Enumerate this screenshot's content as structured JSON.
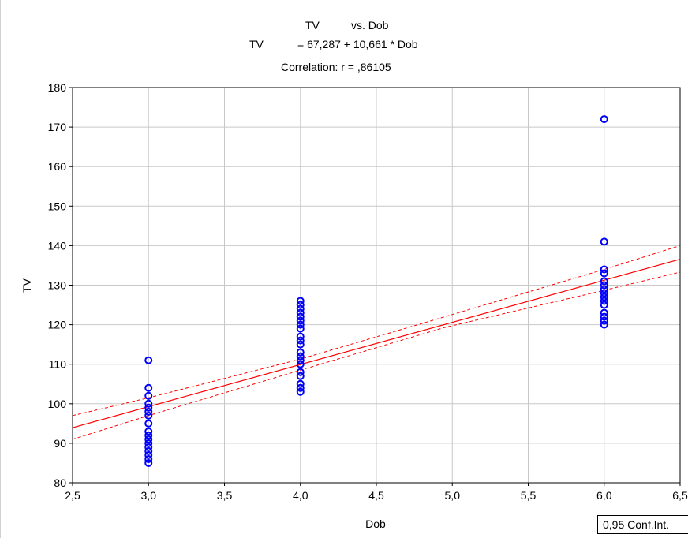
{
  "chart_data": {
    "type": "scatter",
    "title_line1_var": "TV",
    "title_line1_vs": "vs. Dob",
    "title_line2_var": "TV",
    "title_line2_eq": "= 67,287 + 10,661 * Dob",
    "title_line3": "Correlation: r = ,86105",
    "xlabel": "Dob",
    "ylabel": "TV",
    "xlim": [
      2.5,
      6.5
    ],
    "ylim": [
      80,
      180
    ],
    "x_ticks": [
      "2,5",
      "3,0",
      "3,5",
      "4,0",
      "4,5",
      "5,0",
      "5,5",
      "6,0",
      "6,5"
    ],
    "y_ticks": [
      "80",
      "90",
      "100",
      "110",
      "120",
      "130",
      "140",
      "150",
      "160",
      "170",
      "180"
    ],
    "grid": true,
    "regression": {
      "intercept": 67.287,
      "slope": 10.661
    },
    "conf_band": {
      "x": [
        2.5,
        3.0,
        4.0,
        4.95,
        6.0,
        6.5
      ],
      "upper": [
        97.0,
        101.5,
        111.3,
        122.0,
        134.0,
        140.0
      ],
      "lower": [
        91.0,
        97.0,
        108.5,
        119.3,
        128.7,
        133.3
      ]
    },
    "series": [
      {
        "color": "#0000ff",
        "points": [
          [
            3.0,
            85
          ],
          [
            3.0,
            86
          ],
          [
            3.0,
            87
          ],
          [
            3.0,
            88
          ],
          [
            3.0,
            89
          ],
          [
            3.0,
            90
          ],
          [
            3.0,
            91
          ],
          [
            3.0,
            92
          ],
          [
            3.0,
            93
          ],
          [
            3.0,
            95
          ],
          [
            3.0,
            97
          ],
          [
            3.0,
            98
          ],
          [
            3.0,
            99
          ],
          [
            3.0,
            100
          ],
          [
            3.0,
            102
          ],
          [
            3.0,
            104
          ],
          [
            3.0,
            111
          ],
          [
            4.0,
            103
          ],
          [
            4.0,
            104
          ],
          [
            4.0,
            105
          ],
          [
            4.0,
            107
          ],
          [
            4.0,
            108
          ],
          [
            4.0,
            110
          ],
          [
            4.0,
            111
          ],
          [
            4.0,
            112
          ],
          [
            4.0,
            113
          ],
          [
            4.0,
            115
          ],
          [
            4.0,
            116
          ],
          [
            4.0,
            117
          ],
          [
            4.0,
            119
          ],
          [
            4.0,
            120
          ],
          [
            4.0,
            121
          ],
          [
            4.0,
            122
          ],
          [
            4.0,
            123
          ],
          [
            4.0,
            124
          ],
          [
            4.0,
            125
          ],
          [
            4.0,
            126
          ],
          [
            6.0,
            120
          ],
          [
            6.0,
            121
          ],
          [
            6.0,
            122
          ],
          [
            6.0,
            123
          ],
          [
            6.0,
            125
          ],
          [
            6.0,
            126
          ],
          [
            6.0,
            127
          ],
          [
            6.0,
            128
          ],
          [
            6.0,
            129
          ],
          [
            6.0,
            130
          ],
          [
            6.0,
            131
          ],
          [
            6.0,
            133
          ],
          [
            6.0,
            134
          ],
          [
            6.0,
            141
          ],
          [
            6.0,
            172
          ]
        ]
      }
    ],
    "line_color": "#ff0000",
    "legend": "0,95 Conf.Int."
  }
}
